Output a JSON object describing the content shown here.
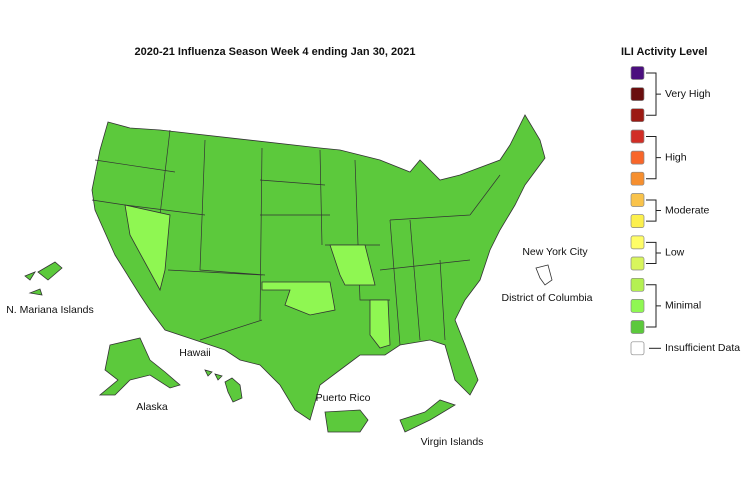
{
  "title": "2020-21 Influenza Season Week 4 ending Jan 30, 2021",
  "legend": {
    "title": "ILI Activity Level",
    "levels": [
      {
        "label": "Very High",
        "colors": [
          "#4b0f7e",
          "#6a0e0e",
          "#9c1a13"
        ]
      },
      {
        "label": "High",
        "colors": [
          "#d12e26",
          "#f8662a",
          "#f68f2f"
        ]
      },
      {
        "label": "Moderate",
        "colors": [
          "#f9c34b",
          "#fcf04d"
        ]
      },
      {
        "label": "Low",
        "colors": [
          "#fffd67",
          "#d8f55c"
        ]
      },
      {
        "label": "Minimal",
        "colors": [
          "#b4f052",
          "#8ff752",
          "#5cc93c"
        ]
      },
      {
        "label": "Insufficient Data",
        "colors": [
          "#ffffff"
        ]
      }
    ]
  },
  "region_labels": [
    "New York City",
    "District of Columbia",
    "N. Mariana Islands",
    "Hawaii",
    "Alaska",
    "Puerto Rico",
    "Virgin Islands"
  ]
}
